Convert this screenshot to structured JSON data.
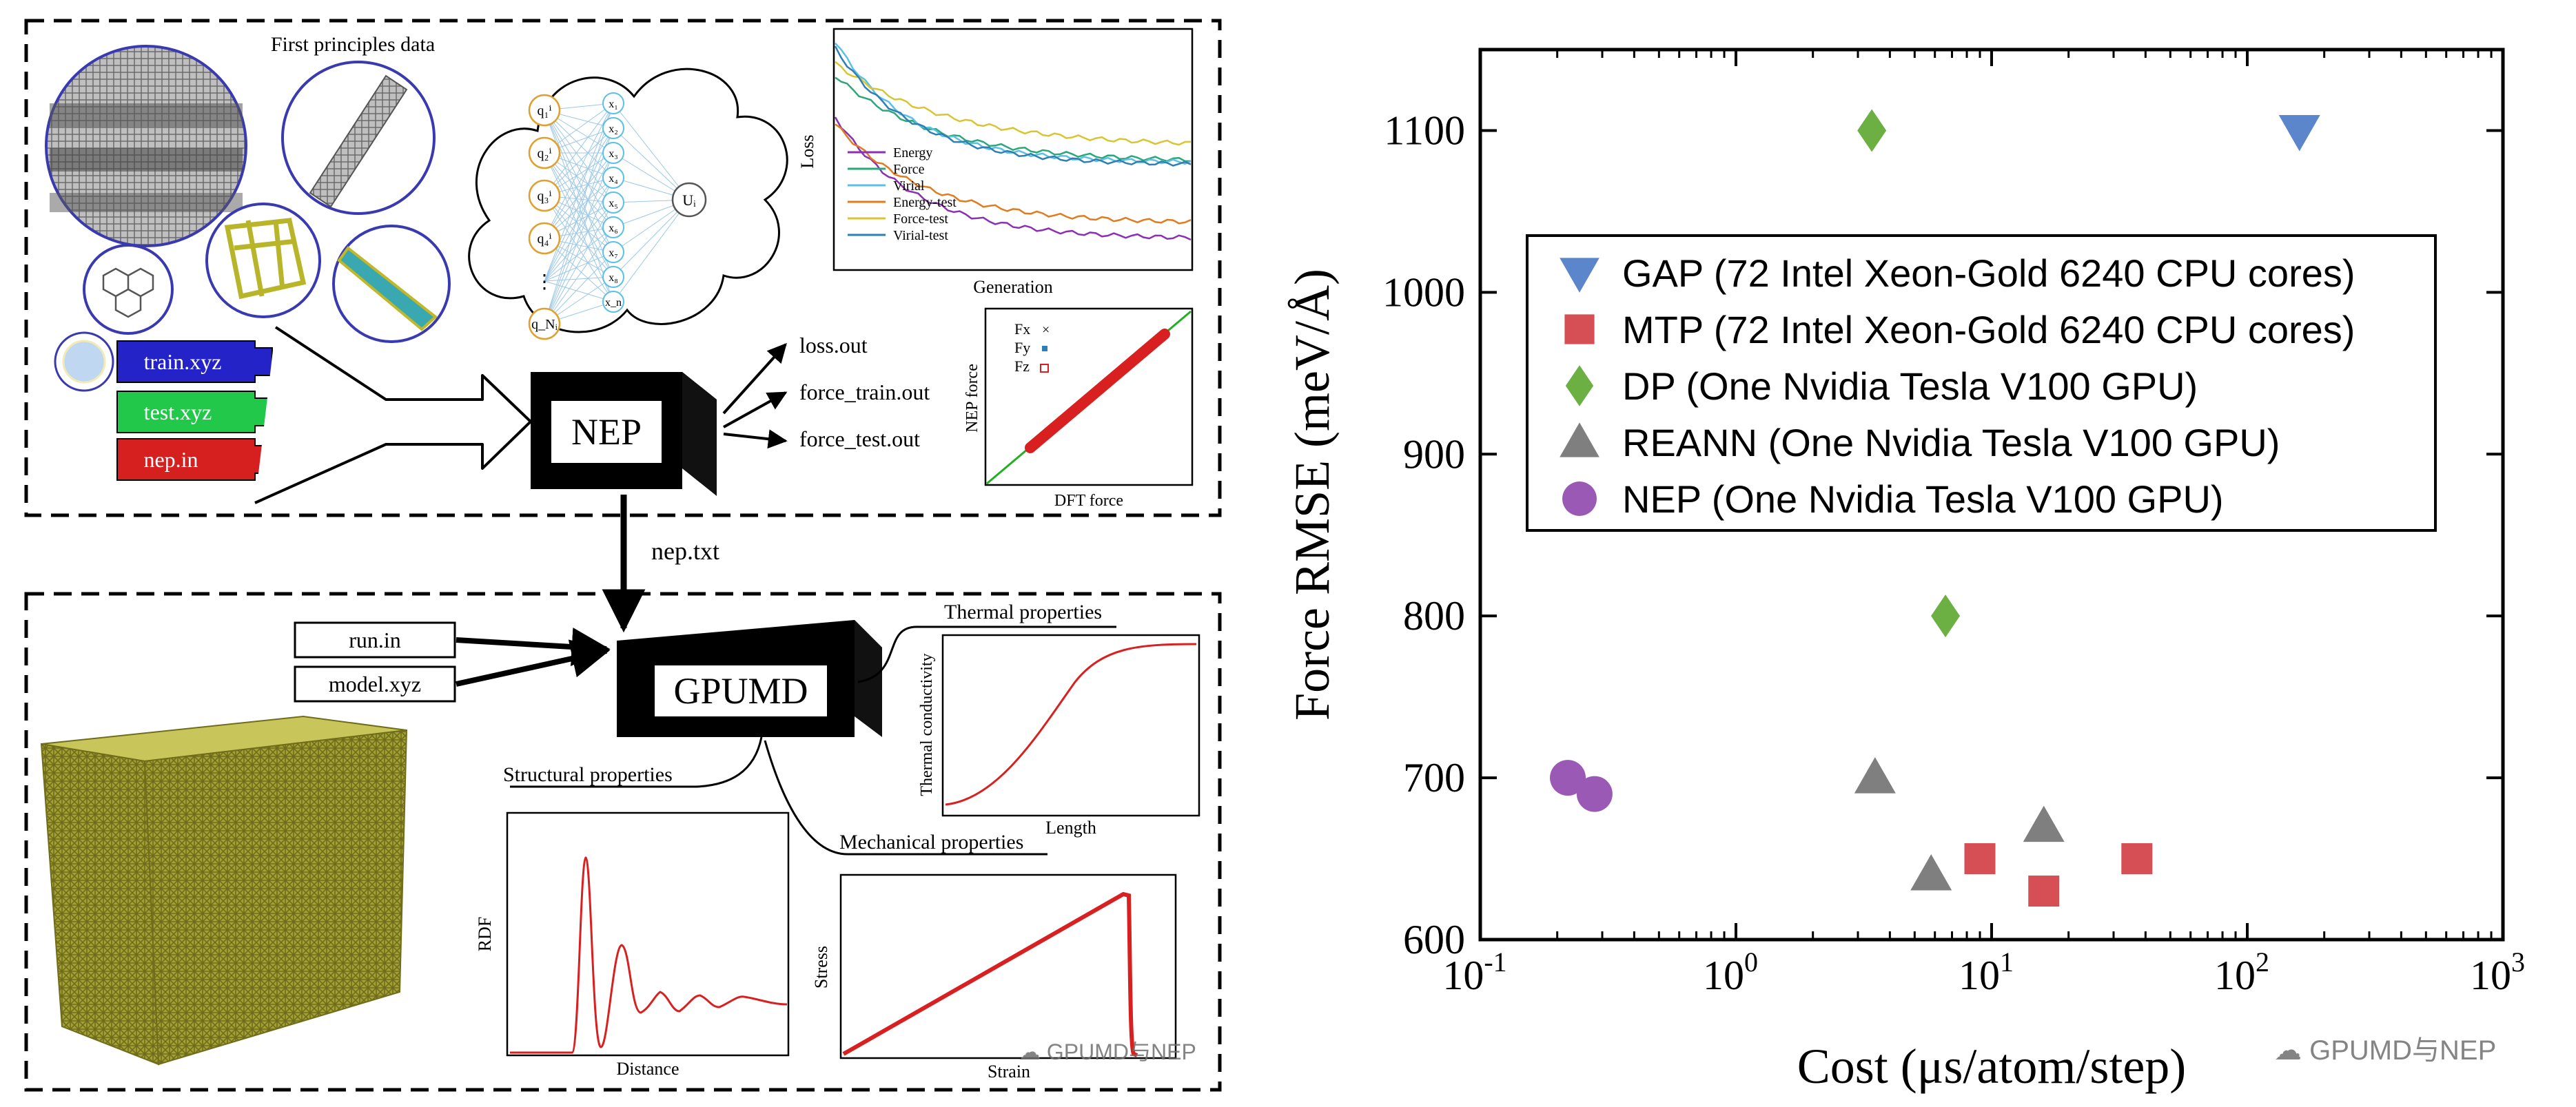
{
  "workflow": {
    "first_principles_title": "First principles data",
    "inputs": [
      "train.xyz",
      "test.xyz",
      "nep.in"
    ],
    "nep_label": "NEP",
    "outputs": [
      "loss.out",
      "force_train.out",
      "force_test.out"
    ],
    "network": {
      "inputs": [
        "q₁ⁱ",
        "q₂ⁱ",
        "q₃ⁱ",
        "q₄ⁱ",
        "⋮",
        "q_Nᵢ"
      ],
      "hidden": [
        "x₁",
        "x₂",
        "x₃",
        "x₄",
        "x₅",
        "x₆",
        "x₇",
        "x₈",
        "x_n"
      ],
      "output": "Uᵢ"
    },
    "loss_plot": {
      "ylabel": "Loss",
      "xlabel": "Generation",
      "legend": [
        "Energy",
        "Force",
        "Virial",
        "Energy-test",
        "Force-test",
        "Virial-test"
      ],
      "colors": [
        "#8b2fb5",
        "#2aa87a",
        "#5cc0e6",
        "#e07b1e",
        "#d9c531",
        "#2f7fb5"
      ]
    },
    "parity_plot": {
      "ylabel": "NEP force",
      "xlabel": "DFT force",
      "legend": [
        "Fx",
        "Fy",
        "Fz"
      ]
    },
    "link_label": "nep.txt",
    "gpumd_inputs": [
      "run.in",
      "model.xyz"
    ],
    "gpumd_label": "GPUMD",
    "thermal": {
      "title": "Thermal properties",
      "ylabel": "Thermal conductivity",
      "xlabel": "Length"
    },
    "structural": {
      "title": "Structural properties",
      "ylabel": "RDF",
      "xlabel": "Distance"
    },
    "mechanical": {
      "title": "Mechanical properties",
      "ylabel": "Stress",
      "xlabel": "Strain"
    },
    "watermark": "GPUMD与NEP"
  },
  "chart_data": {
    "type": "scatter",
    "xscale": "log",
    "xlim": [
      0.1,
      1000
    ],
    "ylim": [
      600,
      1150
    ],
    "xticks": [
      0.1,
      1,
      10,
      100,
      1000
    ],
    "xtick_labels": [
      [
        "10",
        "-1"
      ],
      [
        "10",
        "0"
      ],
      [
        "10",
        "1"
      ],
      [
        "10",
        "2"
      ],
      [
        "10",
        "3"
      ]
    ],
    "yticks": [
      600,
      700,
      800,
      900,
      1000,
      1100
    ],
    "xlabel": "Cost (μs/atom/step)",
    "ylabel": "Force RMSE (meV/Å)",
    "legend_position": "upper-center",
    "series": [
      {
        "name": "GAP (72 Intel Xeon-Gold 6240 CPU cores)",
        "marker": "triangle-down",
        "color": "#5b86cc",
        "points": [
          [
            160,
            1100
          ]
        ]
      },
      {
        "name": "MTP (72 Intel Xeon-Gold 6240 CPU cores)",
        "marker": "square",
        "color": "#d64f55",
        "points": [
          [
            9,
            650
          ],
          [
            16,
            630
          ],
          [
            37,
            650
          ]
        ]
      },
      {
        "name": "DP (One Nvidia Tesla V100 GPU)",
        "marker": "diamond",
        "color": "#6cb043",
        "points": [
          [
            3.4,
            1100
          ],
          [
            6.6,
            800
          ]
        ]
      },
      {
        "name": "REANN (One Nvidia Tesla V100 GPU)",
        "marker": "triangle-up",
        "color": "#7f7f7f",
        "points": [
          [
            3.5,
            700
          ],
          [
            5.8,
            640
          ],
          [
            16,
            670
          ]
        ]
      },
      {
        "name": "NEP (One Nvidia Tesla V100 GPU)",
        "marker": "circle",
        "color": "#9b59b6",
        "points": [
          [
            0.22,
            700
          ],
          [
            0.28,
            690
          ]
        ]
      }
    ],
    "watermark": "GPUMD与NEP"
  }
}
